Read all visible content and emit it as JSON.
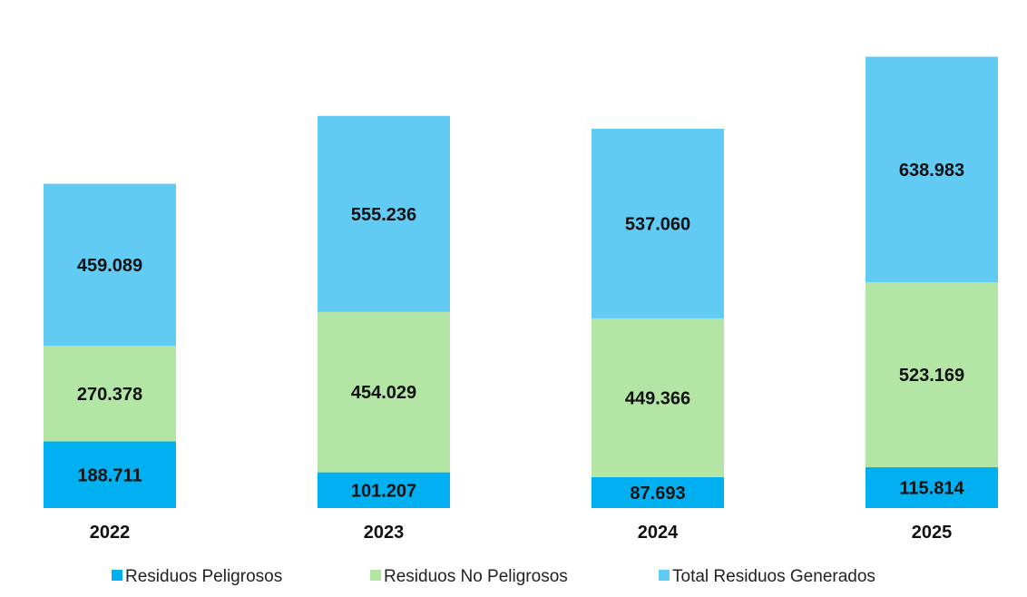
{
  "chart_data": {
    "type": "bar",
    "stacked": true,
    "categories": [
      "2022",
      "2023",
      "2024",
      "2025"
    ],
    "series": [
      {
        "name": "Residuos Peligrosos",
        "color": "#00b0f0",
        "values": [
          188711,
          101207,
          87693,
          115814
        ],
        "labels": [
          "188.711",
          "101.207",
          "87.693",
          "115.814"
        ]
      },
      {
        "name": "Residuos No Peligrosos",
        "color": "#b3e5a4",
        "values": [
          270378,
          454029,
          449366,
          523169
        ],
        "labels": [
          "270.378",
          "454.029",
          "449.366",
          "523.169"
        ]
      },
      {
        "name": "Total Residuos Generados",
        "color": "#62cbf4",
        "values": [
          459089,
          555236,
          537060,
          638983
        ],
        "labels": [
          "459.089",
          "555.236",
          "537.060",
          "638.983"
        ]
      }
    ],
    "title": "",
    "xlabel": "",
    "ylabel": "",
    "grid": false,
    "legend_position": "bottom"
  }
}
